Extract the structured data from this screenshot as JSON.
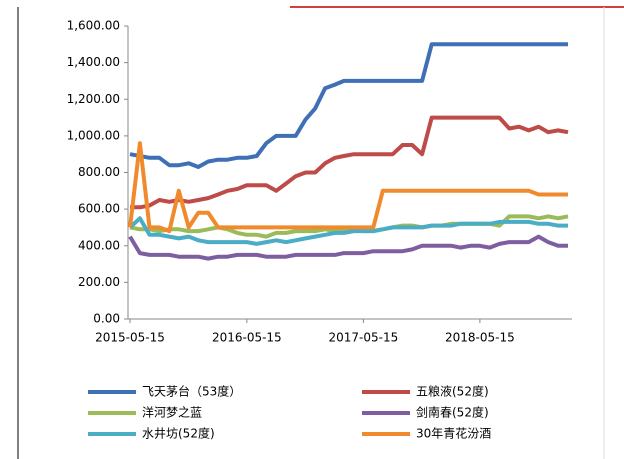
{
  "chart_data": {
    "type": "line",
    "x": [
      "2015-05-15",
      "2015-06-15",
      "2015-07-15",
      "2015-08-15",
      "2015-09-15",
      "2015-10-15",
      "2015-11-15",
      "2015-12-15",
      "2016-01-15",
      "2016-02-15",
      "2016-03-15",
      "2016-04-15",
      "2016-05-15",
      "2016-06-15",
      "2016-07-15",
      "2016-08-15",
      "2016-09-15",
      "2016-10-15",
      "2016-11-15",
      "2016-12-15",
      "2017-01-15",
      "2017-02-15",
      "2017-03-15",
      "2017-04-15",
      "2017-05-15",
      "2017-06-15",
      "2017-07-15",
      "2017-08-15",
      "2017-09-15",
      "2017-10-15",
      "2017-11-15",
      "2017-12-15",
      "2018-01-15",
      "2018-02-15",
      "2018-03-15",
      "2018-04-15",
      "2018-05-15",
      "2018-06-15",
      "2018-07-15",
      "2018-08-15",
      "2018-09-15",
      "2018-10-15",
      "2018-11-15",
      "2018-12-15",
      "2019-01-15",
      "2019-02-15"
    ],
    "series": [
      {
        "name": "飞天茅台（53度）",
        "color": "#3f6fb5",
        "values": [
          900,
          890,
          880,
          880,
          840,
          840,
          850,
          830,
          860,
          870,
          870,
          880,
          880,
          890,
          960,
          1000,
          1000,
          1000,
          1090,
          1150,
          1260,
          1280,
          1300,
          1300,
          1300,
          1300,
          1300,
          1300,
          1300,
          1300,
          1300,
          1500,
          1500,
          1500,
          1500,
          1500,
          1500,
          1500,
          1500,
          1500,
          1500,
          1500,
          1500,
          1500,
          1500,
          1500
        ]
      },
      {
        "name": "五粮液(52度)",
        "color": "#be4b48",
        "values": [
          610,
          610,
          620,
          650,
          640,
          650,
          640,
          650,
          660,
          680,
          700,
          710,
          730,
          730,
          730,
          700,
          740,
          780,
          800,
          800,
          850,
          880,
          890,
          900,
          900,
          900,
          900,
          900,
          950,
          950,
          900,
          1100,
          1100,
          1100,
          1100,
          1100,
          1100,
          1100,
          1100,
          1040,
          1050,
          1030,
          1050,
          1020,
          1030,
          1020
        ]
      },
      {
        "name": "洋河梦之蓝",
        "color": "#9bbb59",
        "values": [
          500,
          490,
          490,
          480,
          490,
          490,
          480,
          480,
          490,
          500,
          490,
          470,
          460,
          460,
          450,
          470,
          470,
          480,
          480,
          480,
          490,
          480,
          490,
          490,
          480,
          480,
          490,
          500,
          510,
          510,
          500,
          510,
          510,
          520,
          520,
          520,
          520,
          520,
          510,
          560,
          560,
          560,
          550,
          560,
          550,
          560
        ]
      },
      {
        "name": "剑南春(52度)",
        "color": "#7d5fa0",
        "values": [
          450,
          360,
          350,
          350,
          350,
          340,
          340,
          340,
          330,
          340,
          340,
          350,
          350,
          350,
          340,
          340,
          340,
          350,
          350,
          350,
          350,
          350,
          360,
          360,
          360,
          370,
          370,
          370,
          370,
          380,
          400,
          400,
          400,
          400,
          390,
          400,
          400,
          390,
          410,
          420,
          420,
          420,
          450,
          420,
          400,
          400
        ]
      },
      {
        "name": "水井坊(52度)",
        "color": "#4bacc6",
        "values": [
          500,
          550,
          460,
          460,
          450,
          440,
          450,
          430,
          420,
          420,
          420,
          420,
          420,
          410,
          420,
          430,
          420,
          430,
          440,
          450,
          460,
          470,
          470,
          480,
          480,
          480,
          490,
          500,
          500,
          500,
          500,
          510,
          510,
          510,
          520,
          520,
          520,
          520,
          530,
          530,
          530,
          530,
          520,
          520,
          510,
          510
        ]
      },
      {
        "name": "30年青花汾酒",
        "color": "#f08a2c",
        "values": [
          500,
          960,
          500,
          500,
          480,
          700,
          500,
          580,
          580,
          500,
          500,
          500,
          500,
          500,
          500,
          500,
          500,
          500,
          500,
          500,
          500,
          500,
          500,
          500,
          500,
          500,
          700,
          700,
          700,
          700,
          700,
          700,
          700,
          700,
          700,
          700,
          700,
          700,
          700,
          700,
          700,
          700,
          680,
          680,
          680,
          680
        ]
      }
    ],
    "xlim": [
      "2015-05-15",
      "2019-02-15"
    ],
    "xticks": [
      "2015-05-15",
      "2016-05-15",
      "2017-05-15",
      "2018-05-15"
    ],
    "ylim": [
      0,
      1600
    ],
    "yticks": [
      {
        "value": 0,
        "label": "0.00"
      },
      {
        "value": 200,
        "label": "200.00"
      },
      {
        "value": 400,
        "label": "400.00"
      },
      {
        "value": 600,
        "label": "600.00"
      },
      {
        "value": 800,
        "label": "800.00"
      },
      {
        "value": 1000,
        "label": "1,000.00"
      },
      {
        "value": 1200,
        "label": "1,200.00"
      },
      {
        "value": 1400,
        "label": "1,400.00"
      },
      {
        "value": 1600,
        "label": "1,600.00"
      }
    ],
    "grid": false,
    "legend": "bottom"
  }
}
